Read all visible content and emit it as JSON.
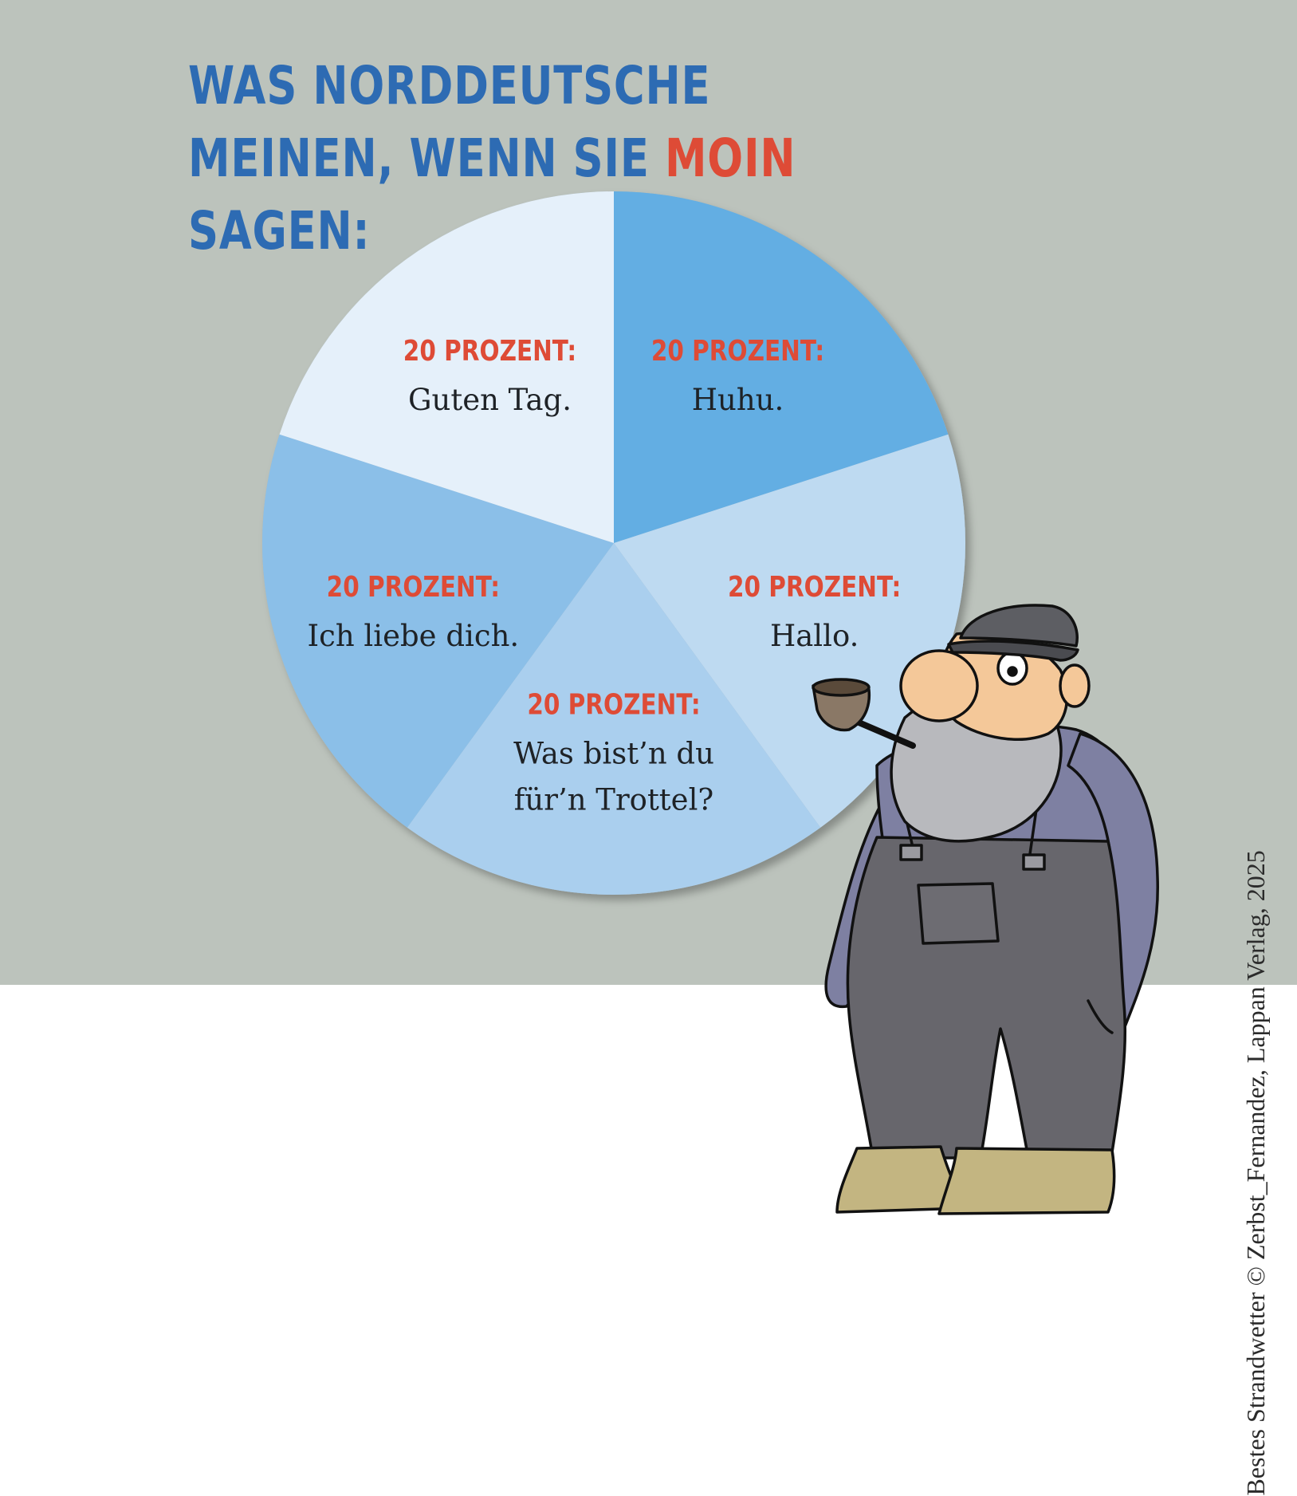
{
  "title": {
    "line1_prefix": "WAS NORDDEUTSCHE MEINEN, WENN SIE ",
    "line1_accent": "MOIN",
    "line2": "SAGEN:"
  },
  "credit": "Bestes Strandwetter © Zerbst_Fernandez, Lappan Verlag, 2025",
  "colors": {
    "background": "#bcc3bc",
    "title_blue": "#2d6bb3",
    "accent_red": "#de4b36",
    "label_dark": "#1e2226"
  },
  "chart_data": {
    "type": "pie",
    "start": "top, clockwise",
    "slices": [
      {
        "value": 20,
        "percent_label": "20 PROZENT:",
        "text": [
          "Huhu."
        ],
        "color": "#63aee3"
      },
      {
        "value": 20,
        "percent_label": "20 PROZENT:",
        "text": [
          "Hallo."
        ],
        "color": "#bedaf1"
      },
      {
        "value": 20,
        "percent_label": "20 PROZENT:",
        "text": [
          "Was bist’n du",
          "für’n Trottel?"
        ],
        "color": "#aacfee"
      },
      {
        "value": 20,
        "percent_label": "20 PROZENT:",
        "text": [
          "Ich liebe dich."
        ],
        "color": "#8bbfe8"
      },
      {
        "value": 20,
        "percent_label": "20 PROZENT:",
        "text": [
          "Guten Tag."
        ],
        "color": "#e5f0fa"
      }
    ]
  },
  "illustration": {
    "icon": "fisherman-with-pipe-illustration"
  }
}
